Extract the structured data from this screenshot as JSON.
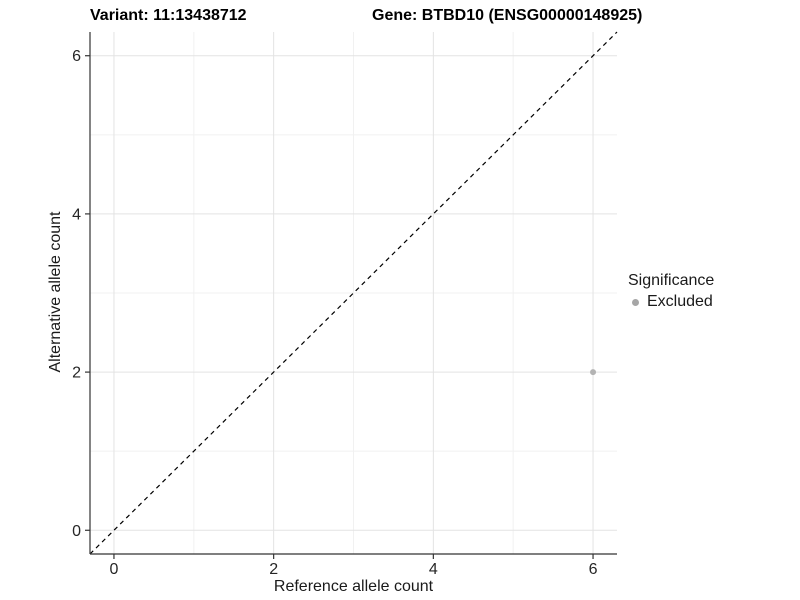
{
  "titles": {
    "variant": "Variant: 11:13438712",
    "gene": "Gene: BTBD10 (ENSG00000148925)"
  },
  "legend": {
    "title": "Significance",
    "items": [
      {
        "label": "Excluded",
        "color": "#a6a6a6"
      }
    ]
  },
  "chart_data": {
    "type": "scatter",
    "title_left": "Variant: 11:13438712",
    "title_right": "Gene: BTBD10 (ENSG00000148925)",
    "xlabel": "Reference allele count",
    "ylabel": "Alternative allele count",
    "xlim": [
      -0.3,
      6.3
    ],
    "ylim": [
      -0.3,
      6.3
    ],
    "x_ticks": [
      0,
      2,
      4,
      6
    ],
    "y_ticks": [
      0,
      2,
      4,
      6
    ],
    "x_minor": [
      1,
      3,
      5
    ],
    "y_minor": [
      1,
      3,
      5
    ],
    "grid": true,
    "legend_position": "right",
    "series": [
      {
        "name": "Excluded",
        "color": "#b3b3b3",
        "point_radius": 3,
        "points": [
          {
            "x": 6,
            "y": 2
          }
        ]
      }
    ],
    "reference_line": {
      "type": "identity",
      "style": "dashed",
      "color": "#000000"
    },
    "colors": {
      "grid_major": "#e3e3e3",
      "grid_minor": "#f1f1f1",
      "axis": "#333333",
      "tick_label": "#262626"
    }
  }
}
